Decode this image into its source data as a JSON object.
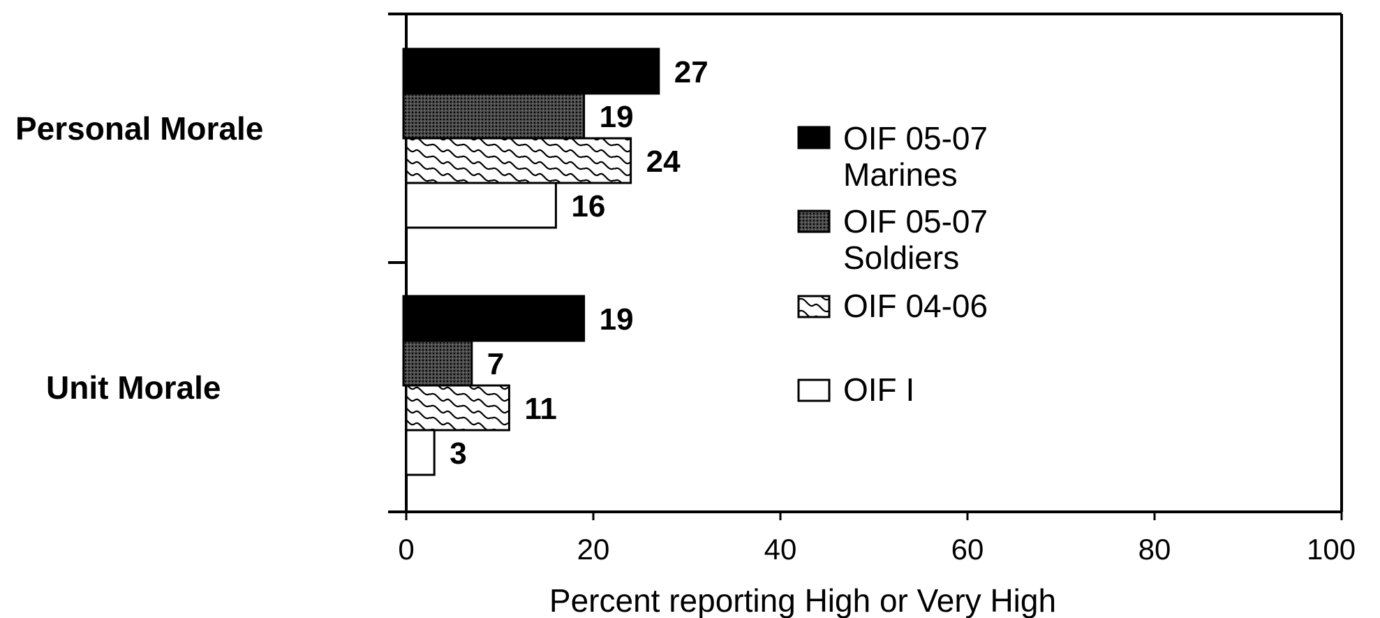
{
  "chart_data": {
    "type": "bar",
    "orientation": "horizontal",
    "categories": [
      "Personal Morale",
      "Unit Morale"
    ],
    "series": [
      {
        "name": "OIF 05-07 Marines",
        "values": [
          27,
          19
        ],
        "pattern": "solid-black"
      },
      {
        "name": "OIF 05-07 Soldiers",
        "values": [
          19,
          7
        ],
        "pattern": "dense-dots"
      },
      {
        "name": "OIF 04-06",
        "values": [
          24,
          11
        ],
        "pattern": "wave-hatch"
      },
      {
        "name": "OIF I",
        "values": [
          16,
          3
        ],
        "pattern": "white"
      }
    ],
    "legend": {
      "placement": "inside-right",
      "entries": [
        {
          "lines": [
            "OIF 05-07",
            "Marines"
          ]
        },
        {
          "lines": [
            "OIF 05-07",
            "Soldiers"
          ]
        },
        {
          "lines": [
            "OIF 04-06"
          ]
        },
        {
          "lines": [
            "OIF I"
          ]
        }
      ]
    },
    "xlabel": "Percent reporting High or Very High",
    "ylabel": "",
    "title": "",
    "xlim": [
      0,
      100
    ],
    "xticks": [
      "0",
      "20",
      "40",
      "60",
      "80",
      "100"
    ],
    "grid": false,
    "colors": {
      "fill_dark": "#000000",
      "fill_light": "#ffffff",
      "stroke": "#000000"
    }
  }
}
